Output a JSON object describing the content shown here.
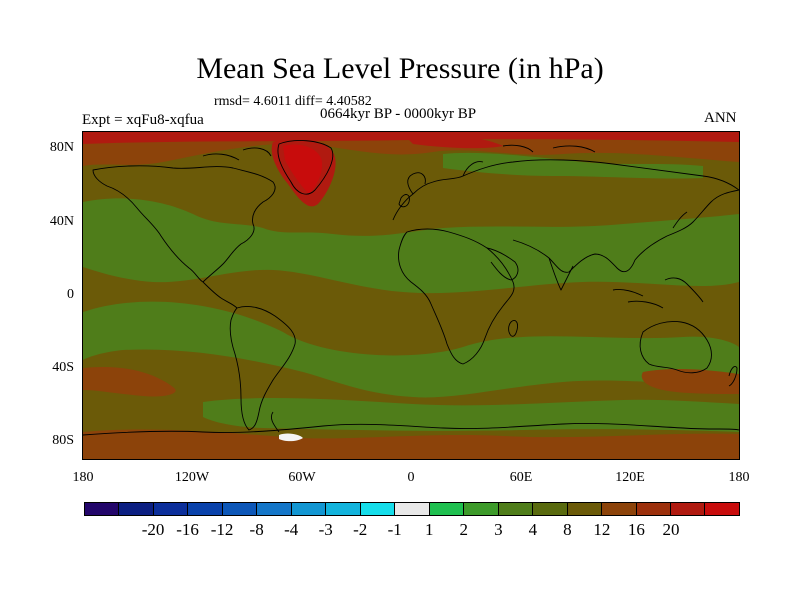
{
  "title": "Mean Sea Level Pressure (in hPa)",
  "stats": "rmsd= 4.6011 diff= 4.40582",
  "period": "0664kyr BP - 0000kyr BP",
  "experiment": "Expt = xqFu8-xqfua",
  "season": "ANN",
  "map": {
    "type": "filled-contour world map",
    "lat_labels": [
      "80N",
      "40N",
      "0",
      "40S",
      "80S"
    ],
    "lon_labels": [
      "180",
      "120W",
      "60W",
      "0",
      "60E",
      "120E",
      "180"
    ]
  },
  "colorbar": {
    "colors": [
      "#23066b",
      "#0c1f82",
      "#0c2f9b",
      "#0a42ab",
      "#0d57b8",
      "#1476c8",
      "#1296d2",
      "#12b3dc",
      "#16ddea",
      "#e8e8e8",
      "#1fc050",
      "#3d9a2a",
      "#4f7d1a",
      "#596a0e",
      "#6b5a08",
      "#8c430a",
      "#9c300c",
      "#b01a10",
      "#c80c0c"
    ],
    "labels": [
      "-20",
      "-16",
      "-12",
      "-8",
      "-4",
      "-3",
      "-2",
      "-1",
      "1",
      "2",
      "3",
      "4",
      "8",
      "12",
      "16",
      "20"
    ]
  },
  "palette": {
    "background": "#6b5a08",
    "green": "#4f7d1a",
    "orange": "#8c430a",
    "red": "#b01a10",
    "coast": "#000000"
  }
}
